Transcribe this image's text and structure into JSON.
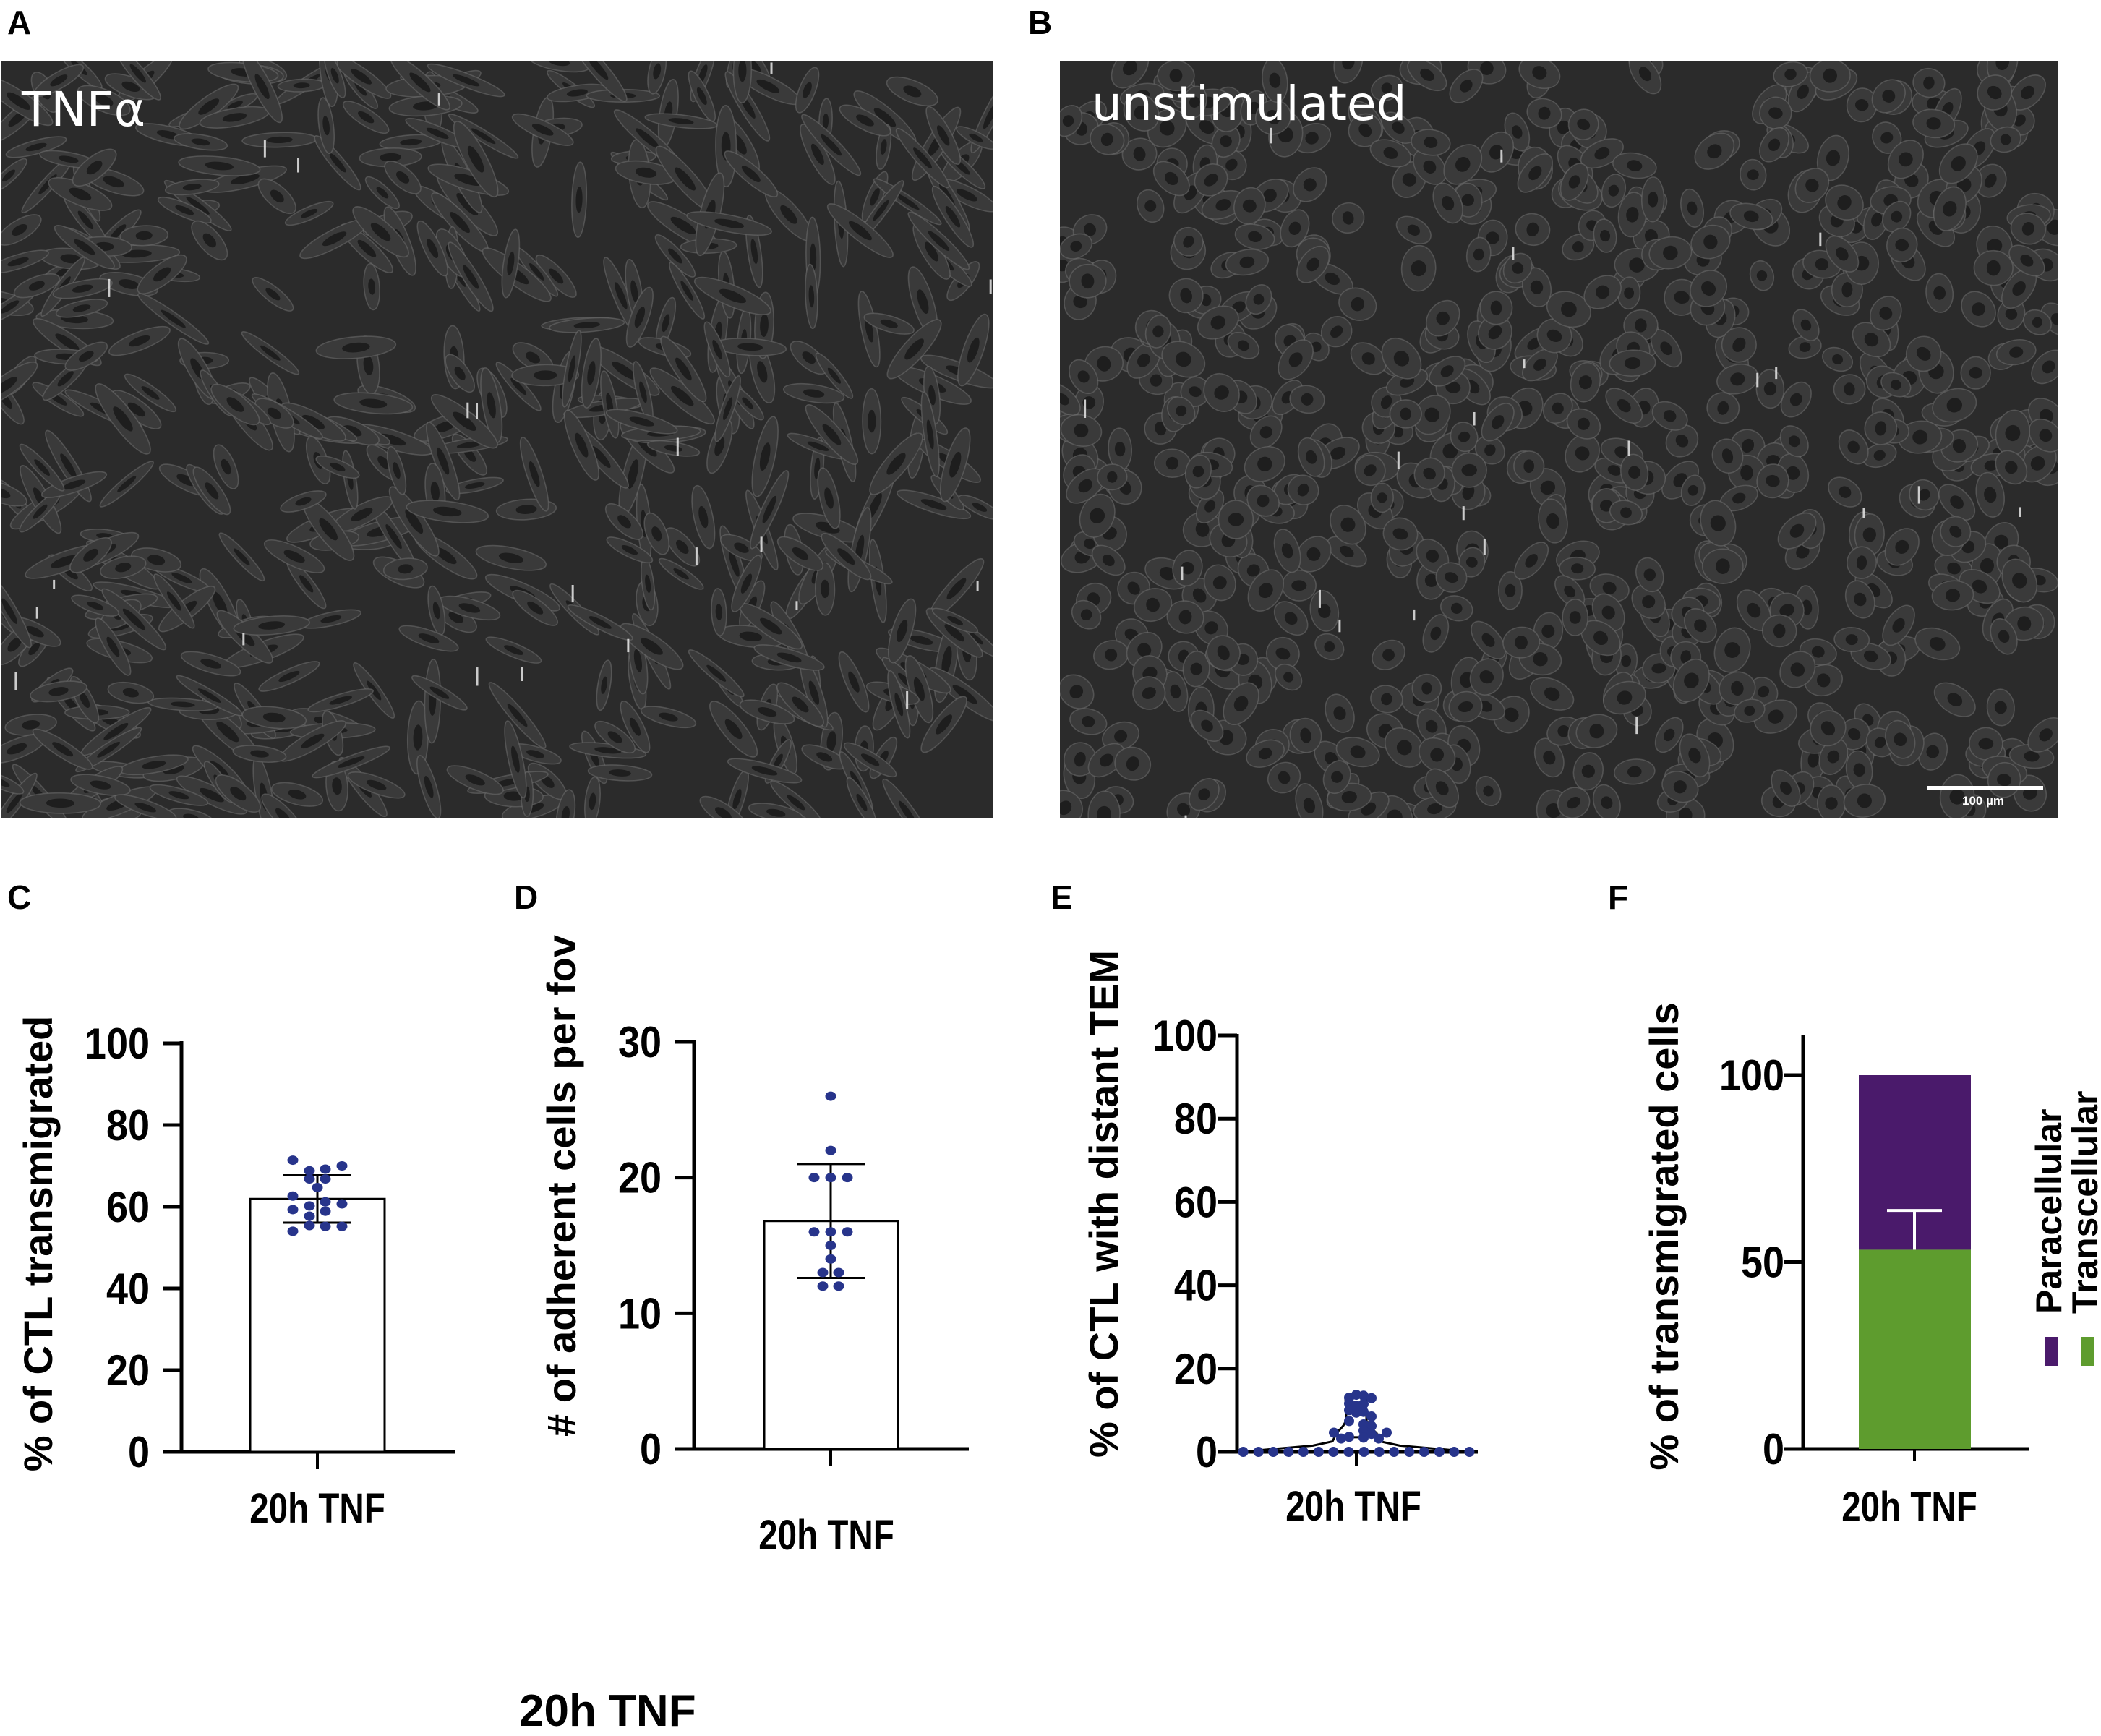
{
  "figure": {
    "panels": {
      "A": {
        "letter": "A",
        "image_label": "TNFα"
      },
      "B": {
        "letter": "B",
        "image_label": "unstimulated",
        "scale_bar_label": "100 µm"
      },
      "C": {
        "letter": "C"
      },
      "D": {
        "letter": "D"
      },
      "E": {
        "letter": "E"
      },
      "F": {
        "letter": "F"
      }
    },
    "stray_label": "20h TNF"
  },
  "colors": {
    "dot": "#27348b",
    "paracellular": "#4a1a6b",
    "transcellular": "#5e9c2e",
    "axis": "#000000",
    "micrograph_bg": "#2b2b2b"
  },
  "chart_data": [
    {
      "panel": "C",
      "type": "bar",
      "categories": [
        "20h TNF"
      ],
      "values": [
        61.9
      ],
      "error": {
        "upper": 67.7,
        "lower": 56.1
      },
      "points": [
        71.4,
        68.8,
        69.2,
        70.0,
        66.8,
        66.8,
        64.7,
        62.6,
        61.2,
        60.7,
        60.2,
        59.3,
        58.9,
        57.7,
        55.4,
        55.2,
        55.2,
        54.0
      ],
      "ylabel": "% of CTL transmigrated",
      "xlabel": "",
      "ylim": [
        0,
        100
      ],
      "yticks": [
        "0",
        "20",
        "40",
        "60",
        "80",
        "100"
      ],
      "ytick_values": [
        0,
        20,
        40,
        60,
        80,
        100
      ]
    },
    {
      "panel": "D",
      "type": "bar",
      "categories": [
        "20h TNF"
      ],
      "values": [
        16.8
      ],
      "error": {
        "upper": 21.0,
        "lower": 12.6
      },
      "points": [
        26,
        22,
        20,
        20,
        20,
        16,
        16,
        16,
        15,
        14,
        13,
        13,
        12,
        12
      ],
      "ylabel": "# of adherent cells per fov",
      "xlabel": "",
      "ylim": [
        0,
        30
      ],
      "yticks": [
        "0",
        "10",
        "20",
        "30"
      ],
      "ytick_values": [
        0,
        10,
        20,
        30
      ]
    },
    {
      "panel": "E",
      "type": "violin",
      "categories": [
        "20h TNF"
      ],
      "median": 3.5,
      "points": [
        0,
        0,
        0,
        0,
        0,
        0,
        0,
        0,
        0,
        0,
        0,
        0,
        0,
        0,
        0,
        0,
        13.0,
        13.7,
        13.5,
        12.9,
        11.6,
        11.1,
        11.5,
        10.0,
        9.4,
        9.6,
        8.5,
        7.4,
        6.6,
        6.2,
        5.1,
        4.6,
        4.3,
        4.6,
        3.2,
        3.6,
        3.4,
        3.2
      ],
      "ylabel": "% of CTL with distant TEM",
      "xlabel": "",
      "ylim": [
        0,
        100
      ],
      "yticks": [
        "0",
        "20",
        "40",
        "60",
        "80",
        "100"
      ],
      "ytick_values": [
        0,
        20,
        40,
        60,
        80,
        100
      ]
    },
    {
      "panel": "F",
      "type": "stacked-bar",
      "categories": [
        "20h TNF"
      ],
      "series": [
        {
          "name": "Transcellular",
          "values": [
            53.3
          ]
        },
        {
          "name": "Paracellular",
          "values": [
            46.7
          ]
        }
      ],
      "error": {
        "upper": 63.8,
        "on_series": "Transcellular"
      },
      "ylabel": "% of transmigrated cells",
      "xlabel": "",
      "ylim": [
        0,
        110
      ],
      "yticks": [
        "0",
        "50",
        "100"
      ],
      "ytick_values": [
        0,
        50,
        100
      ],
      "legend": [
        "Paracellular",
        "Transcellular"
      ],
      "legend_position": "right"
    }
  ]
}
